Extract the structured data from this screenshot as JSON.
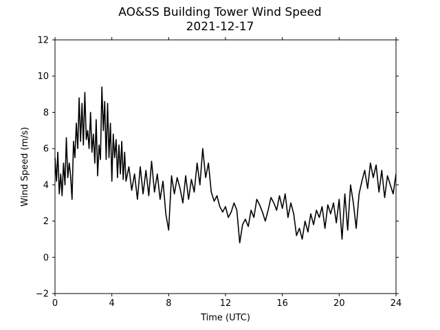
{
  "chart_data": {
    "type": "line",
    "title": [
      "AO&SS Building Tower Wind Speed",
      "2021-12-17"
    ],
    "xlabel": "Time (UTC)",
    "ylabel": "Wind Speed (m/s)",
    "xlim": [
      0,
      24
    ],
    "ylim": [
      -2,
      12
    ],
    "xticks": [
      0,
      4,
      8,
      12,
      16,
      20,
      24
    ],
    "yticks": [
      -2,
      0,
      2,
      4,
      6,
      8,
      10,
      12
    ],
    "grid": false,
    "line_color": "#000000",
    "series": [
      {
        "x": [
          0,
          0.1,
          0.2,
          0.3,
          0.4,
          0.5,
          0.6,
          0.7,
          0.8,
          0.9,
          1.0,
          1.1,
          1.2,
          1.3,
          1.4,
          1.5,
          1.6,
          1.7,
          1.8,
          1.9,
          2.0,
          2.1,
          2.2,
          2.3,
          2.4,
          2.5,
          2.6,
          2.7,
          2.8,
          2.9,
          3.0,
          3.1,
          3.2,
          3.3,
          3.4,
          3.5,
          3.6,
          3.7,
          3.8,
          3.9,
          4.0,
          4.1,
          4.2,
          4.3,
          4.4,
          4.5,
          4.6,
          4.7,
          4.8,
          4.9,
          5.0,
          5.2,
          5.4,
          5.6,
          5.8,
          6.0,
          6.2,
          6.4,
          6.6,
          6.8,
          7.0,
          7.2,
          7.4,
          7.6,
          7.8,
          8.0,
          8.2,
          8.4,
          8.6,
          8.8,
          9.0,
          9.2,
          9.4,
          9.6,
          9.8,
          10.0,
          10.2,
          10.4,
          10.6,
          10.8,
          11.0,
          11.2,
          11.4,
          11.6,
          11.8,
          12.0,
          12.2,
          12.4,
          12.6,
          12.8,
          13.0,
          13.2,
          13.4,
          13.6,
          13.8,
          14.0,
          14.2,
          14.4,
          14.6,
          14.8,
          15.0,
          15.2,
          15.4,
          15.6,
          15.8,
          16.0,
          16.2,
          16.4,
          16.6,
          16.8,
          17.0,
          17.2,
          17.4,
          17.6,
          17.8,
          18.0,
          18.2,
          18.4,
          18.6,
          18.8,
          19.0,
          19.2,
          19.4,
          19.6,
          19.8,
          20.0,
          20.2,
          20.4,
          20.6,
          20.8,
          21.0,
          21.2,
          21.4,
          21.6,
          21.8,
          22.0,
          22.2,
          22.4,
          22.6,
          22.8,
          23.0,
          23.2,
          23.4,
          23.6,
          23.8,
          24.0
        ],
        "y": [
          5.5,
          4.2,
          5.8,
          3.5,
          4.6,
          3.4,
          5.2,
          4.0,
          6.6,
          4.4,
          5.2,
          4.5,
          3.2,
          6.4,
          5.5,
          7.4,
          6.0,
          8.8,
          6.4,
          8.5,
          6.2,
          9.1,
          6.5,
          7.0,
          6.0,
          8.0,
          5.8,
          6.8,
          5.2,
          7.6,
          4.5,
          6.2,
          5.4,
          9.4,
          7.0,
          8.6,
          5.4,
          8.5,
          5.5,
          7.4,
          4.2,
          6.8,
          5.5,
          6.5,
          4.4,
          6.2,
          4.6,
          6.4,
          4.3,
          5.8,
          4.2,
          5.0,
          3.7,
          4.6,
          3.2,
          5.0,
          3.5,
          4.8,
          3.4,
          5.3,
          3.6,
          4.6,
          3.2,
          4.2,
          2.4,
          1.5,
          4.5,
          3.5,
          4.4,
          3.8,
          3.0,
          4.5,
          3.2,
          4.3,
          3.6,
          5.2,
          4.0,
          6.0,
          4.4,
          5.2,
          3.6,
          3.1,
          3.4,
          2.8,
          2.5,
          2.8,
          2.2,
          2.5,
          3.0,
          2.6,
          0.8,
          1.8,
          2.1,
          1.7,
          2.6,
          2.2,
          3.2,
          2.9,
          2.5,
          2.0,
          2.6,
          3.3,
          3.0,
          2.6,
          3.4,
          2.7,
          3.5,
          2.2,
          3.0,
          2.4,
          1.2,
          1.6,
          1.0,
          2.0,
          1.4,
          2.4,
          1.8,
          2.6,
          2.2,
          2.8,
          1.6,
          2.9,
          2.4,
          3.0,
          1.9,
          3.2,
          1.0,
          3.5,
          1.5,
          4.0,
          3.0,
          1.6,
          3.5,
          4.2,
          4.8,
          3.8,
          5.2,
          4.4,
          5.1,
          3.6,
          4.8,
          3.3,
          4.5,
          4.0,
          3.5,
          4.6
        ]
      }
    ]
  }
}
